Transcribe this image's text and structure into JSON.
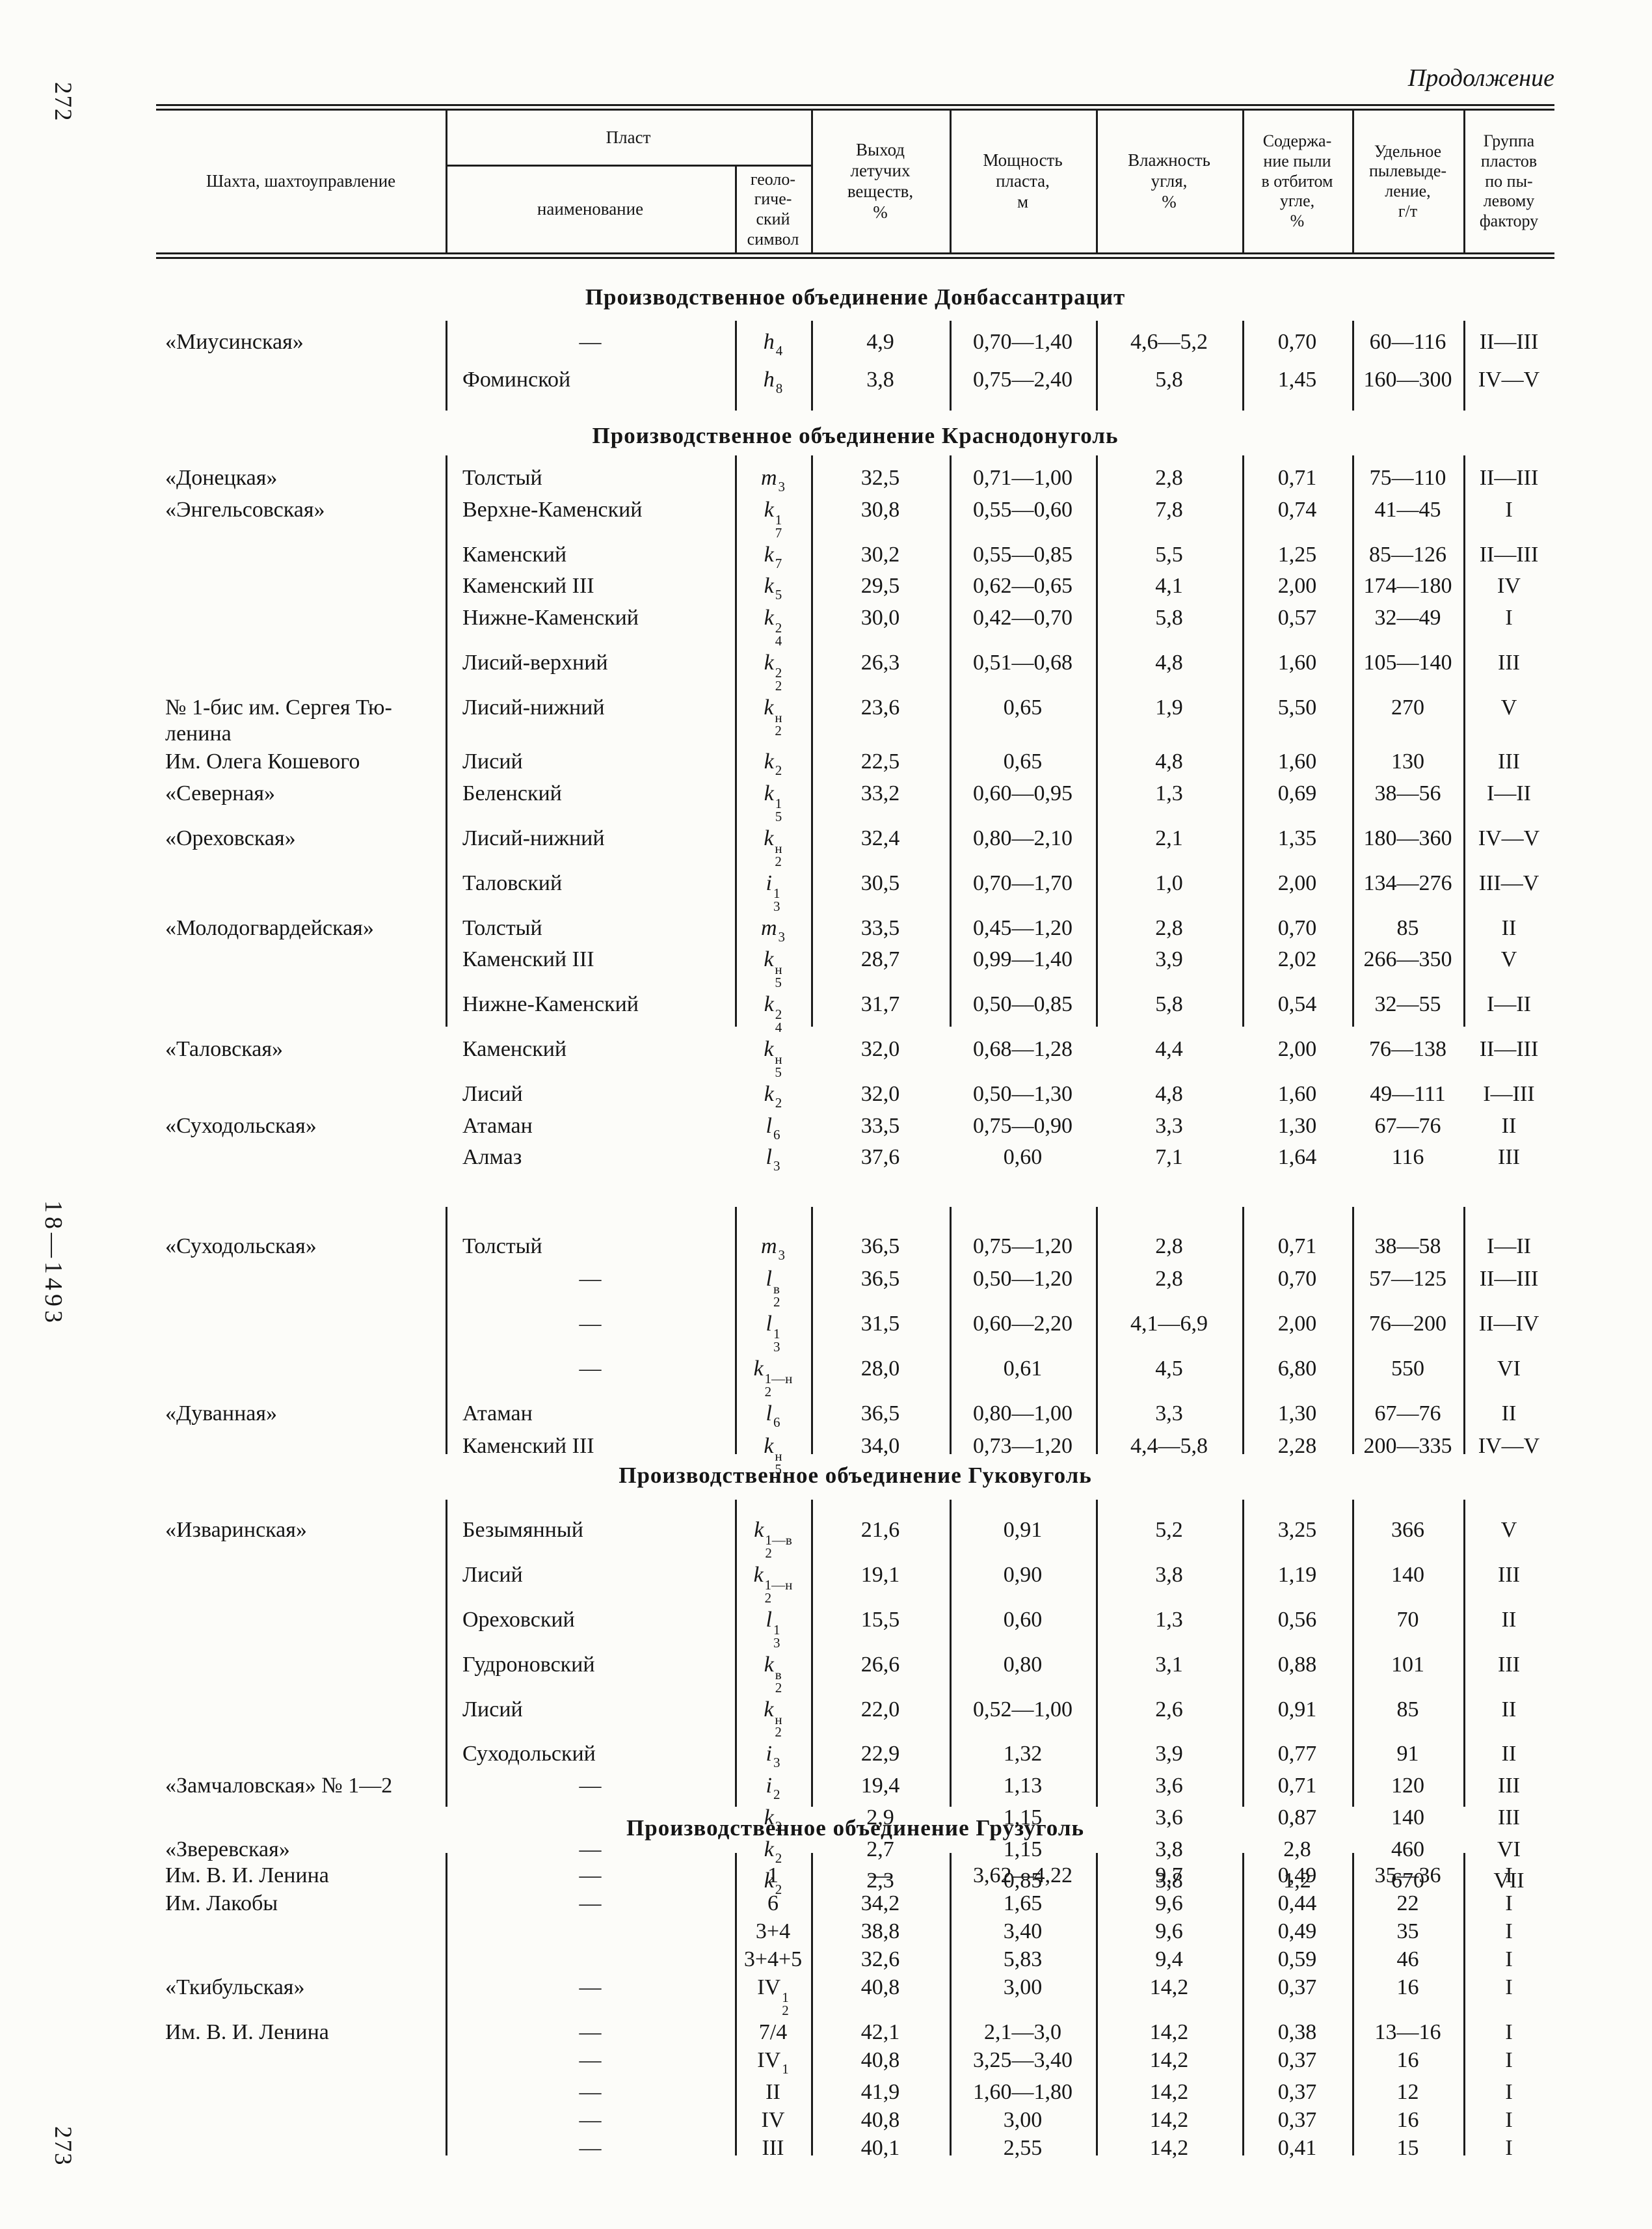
{
  "page": {
    "top_left_number": "272",
    "bottom_left_number": "273",
    "side_note": "18—1493",
    "continuation_label": "Продолжение"
  },
  "table_header": {
    "mine": "Шахта, шахтоуправление",
    "seam_group": "Пласт",
    "seam_name": "наименование",
    "seam_symbol": "геоло-\nгиче-\nский\nсимвол",
    "volatile": "Выход\nлетучих\nвеществ,\n%",
    "thickness": "Мощность\nпласта,\nм",
    "moisture": "Влажность\nугля,\n%",
    "dust": "Содержа-\nние пыли\nв отбитом\nугле,\n%",
    "emission": "Удельное\nпылевыде-\nление,\nг/т",
    "group": "Группа\nпластов\nпо пы-\nлевому\nфактору"
  },
  "sections": [
    {
      "title": "Производственное объединение Донбассантрацит",
      "rows": [
        {
          "mn": "«Миусинская»",
          "sm": "—",
          "sy": {
            "b": "h",
            "sb": "4"
          },
          "va": "4,9",
          "th": "0,70—1,40",
          "mo": "4,6—5,2",
          "du": "0,70",
          "em": "60—116",
          "gr": "II—III"
        },
        {
          "sm": "Фоминской",
          "sy": {
            "b": "h",
            "sb": "8"
          },
          "va": "3,8",
          "th": "0,75—2,40",
          "mo": "5,8",
          "du": "1,45",
          "em": "160—300",
          "gr": "IV—V"
        }
      ]
    },
    {
      "title": "Производственное объединение Краснодонуголь",
      "rows": [
        {
          "mn": "«Донецкая»",
          "sm": "Толстый",
          "sy": {
            "b": "m",
            "sb": "3"
          },
          "va": "32,5",
          "th": "0,71—1,00",
          "mo": "2,8",
          "du": "0,71",
          "em": "75—110",
          "gr": "II—III"
        },
        {
          "mn": "«Энгельсовская»",
          "sm": "Верхне-Каменский",
          "sy": {
            "b": "k",
            "sp": "1",
            "sb": "7"
          },
          "va": "30,8",
          "th": "0,55—0,60",
          "mo": "7,8",
          "du": "0,74",
          "em": "41—45",
          "gr": "I"
        },
        {
          "sm": "Каменский",
          "sy": {
            "b": "k",
            "sb": "7"
          },
          "va": "30,2",
          "th": "0,55—0,85",
          "mo": "5,5",
          "du": "1,25",
          "em": "85—126",
          "gr": "II—III"
        },
        {
          "sm": "Каменский III",
          "sy": {
            "b": "k",
            "sb": "5"
          },
          "va": "29,5",
          "th": "0,62—0,65",
          "mo": "4,1",
          "du": "2,00",
          "em": "174—180",
          "gr": "IV"
        },
        {
          "sm": "Нижне-Каменский",
          "sy": {
            "b": "k",
            "sp": "2",
            "sb": "4"
          },
          "va": "30,0",
          "th": "0,42—0,70",
          "mo": "5,8",
          "du": "0,57",
          "em": "32—49",
          "gr": "I"
        },
        {
          "sm": "Лисий-верхний",
          "sy": {
            "b": "k",
            "sp": "2",
            "sb": "2"
          },
          "va": "26,3",
          "th": "0,51—0,68",
          "mo": "4,8",
          "du": "1,60",
          "em": "105—140",
          "gr": "III"
        },
        {
          "mn": "№ 1-бис им. Сергея Тю-",
          "mn2": "ленина",
          "sm": "Лисий-нижний",
          "sy": {
            "b": "k",
            "sp": "н",
            "sb": "2"
          },
          "va": "23,6",
          "th": "0,65",
          "mo": "1,9",
          "du": "5,50",
          "em": "270",
          "gr": "V"
        },
        {
          "mn": "Им. Олега Кошевого",
          "sm": "Лисий",
          "sy": {
            "b": "k",
            "sb": "2"
          },
          "va": "22,5",
          "th": "0,65",
          "mo": "4,8",
          "du": "1,60",
          "em": "130",
          "gr": "III"
        },
        {
          "mn": "«Северная»",
          "sm": "Беленский",
          "sy": {
            "b": "k",
            "sp": "1",
            "sb": "5"
          },
          "va": "33,2",
          "th": "0,60—0,95",
          "mo": "1,3",
          "du": "0,69",
          "em": "38—56",
          "gr": "I—II"
        },
        {
          "mn": "«Ореховская»",
          "sm": "Лисий-нижний",
          "sy": {
            "b": "k",
            "sp": "н",
            "sb": "2"
          },
          "va": "32,4",
          "th": "0,80—2,10",
          "mo": "2,1",
          "du": "1,35",
          "em": "180—360",
          "gr": "IV—V"
        },
        {
          "sm": "Таловский",
          "sy": {
            "b": "i",
            "sp": "1",
            "sb": "3"
          },
          "va": "30,5",
          "th": "0,70—1,70",
          "mo": "1,0",
          "du": "2,00",
          "em": "134—276",
          "gr": "III—V"
        },
        {
          "mn": "«Молодогвардейская»",
          "sm": "Толстый",
          "sy": {
            "b": "m",
            "sb": "3"
          },
          "va": "33,5",
          "th": "0,45—1,20",
          "mo": "2,8",
          "du": "0,70",
          "em": "85",
          "gr": "II"
        },
        {
          "sm": "Каменский III",
          "sy": {
            "b": "k",
            "sp": "н",
            "sb": "5"
          },
          "va": "28,7",
          "th": "0,99—1,40",
          "mo": "3,9",
          "du": "2,02",
          "em": "266—350",
          "gr": "V"
        },
        {
          "sm": "Нижне-Каменский",
          "sy": {
            "b": "k",
            "sp": "2",
            "sb": "4"
          },
          "va": "31,7",
          "th": "0,50—0,85",
          "mo": "5,8",
          "du": "0,54",
          "em": "32—55",
          "gr": "I—II"
        },
        {
          "mn": "«Таловская»",
          "sm": "Каменский",
          "sy": {
            "b": "k",
            "sp": "н",
            "sb": "5"
          },
          "va": "32,0",
          "th": "0,68—1,28",
          "mo": "4,4",
          "du": "2,00",
          "em": "76—138",
          "gr": "II—III"
        },
        {
          "sm": "Лисий",
          "sy": {
            "b": "k",
            "sb": "2"
          },
          "va": "32,0",
          "th": "0,50—1,30",
          "mo": "4,8",
          "du": "1,60",
          "em": "49—111",
          "gr": "I—III"
        },
        {
          "mn": "«Суходольская»",
          "sm": "Атаман",
          "sy": {
            "b": "l",
            "sb": "6"
          },
          "va": "33,5",
          "th": "0,75—0,90",
          "mo": "3,3",
          "du": "1,30",
          "em": "67—76",
          "gr": "II"
        },
        {
          "sm": "Алмаз",
          "sy": {
            "b": "l",
            "sb": "3"
          },
          "va": "37,6",
          "th": "0,60",
          "mo": "7,1",
          "du": "1,64",
          "em": "116",
          "gr": "III"
        }
      ]
    },
    {
      "title": null,
      "rows": [
        {
          "mn": "«Суходольская»",
          "sm": "Толстый",
          "sy": {
            "b": "m",
            "sb": "3"
          },
          "va": "36,5",
          "th": "0,75—1,20",
          "mo": "2,8",
          "du": "0,71",
          "em": "38—58",
          "gr": "I—II"
        },
        {
          "sm": "—",
          "sy": {
            "b": "l",
            "sp": "в",
            "sb": "2"
          },
          "va": "36,5",
          "th": "0,50—1,20",
          "mo": "2,8",
          "du": "0,70",
          "em": "57—125",
          "gr": "II—III"
        },
        {
          "sm": "—",
          "sy": {
            "b": "l",
            "sp": "1",
            "sb": "3"
          },
          "va": "31,5",
          "th": "0,60—2,20",
          "mo": "4,1—6,9",
          "du": "2,00",
          "em": "76—200",
          "gr": "II—IV"
        },
        {
          "sm": "—",
          "sy": {
            "b": "k",
            "sp": "1—н",
            "sb": "2"
          },
          "va": "28,0",
          "th": "0,61",
          "mo": "4,5",
          "du": "6,80",
          "em": "550",
          "gr": "VI"
        },
        {
          "mn": "«Дуванная»",
          "sm": "Атаман",
          "sy": {
            "b": "l",
            "sb": "6"
          },
          "va": "36,5",
          "th": "0,80—1,00",
          "mo": "3,3",
          "du": "1,30",
          "em": "67—76",
          "gr": "II"
        },
        {
          "sm": "Каменский III",
          "sy": {
            "b": "k",
            "sp": "н",
            "sb": "5"
          },
          "va": "34,0",
          "th": "0,73—1,20",
          "mo": "4,4—5,8",
          "du": "2,28",
          "em": "200—335",
          "gr": "IV—V"
        }
      ]
    },
    {
      "title": "Производственное объединение Гуковуголь",
      "rows": [
        {
          "mn": "«Изваринская»",
          "sm": "Безымянный",
          "sy": {
            "b": "k",
            "sp": "1—в",
            "sb": "2"
          },
          "va": "21,6",
          "th": "0,91",
          "mo": "5,2",
          "du": "3,25",
          "em": "366",
          "gr": "V"
        },
        {
          "sm": "Лисий",
          "sy": {
            "b": "k",
            "sp": "1—н",
            "sb": "2"
          },
          "va": "19,1",
          "th": "0,90",
          "mo": "3,8",
          "du": "1,19",
          "em": "140",
          "gr": "III"
        },
        {
          "sm": "Ореховский",
          "sy": {
            "b": "l",
            "sp": "1",
            "sb": "3"
          },
          "va": "15,5",
          "th": "0,60",
          "mo": "1,3",
          "du": "0,56",
          "em": "70",
          "gr": "II"
        },
        {
          "sm": "Гудроновский",
          "sy": {
            "b": "k",
            "sp": "в",
            "sb": "2"
          },
          "va": "26,6",
          "th": "0,80",
          "mo": "3,1",
          "du": "0,88",
          "em": "101",
          "gr": "III"
        },
        {
          "sm": "Лисий",
          "sy": {
            "b": "k",
            "sp": "н",
            "sb": "2"
          },
          "va": "22,0",
          "th": "0,52—1,00",
          "mo": "2,6",
          "du": "0,91",
          "em": "85",
          "gr": "II"
        },
        {
          "sm": "Суходольский",
          "sy": {
            "b": "i",
            "sb": "3"
          },
          "va": "22,9",
          "th": "1,32",
          "mo": "3,9",
          "du": "0,77",
          "em": "91",
          "gr": "II"
        },
        {
          "mn": "«Замчаловская» № 1—2",
          "sm": "—",
          "sy": {
            "b": "i",
            "sb": "2"
          },
          "va": "19,4",
          "th": "1,13",
          "mo": "3,6",
          "du": "0,71",
          "em": "120",
          "gr": "III"
        },
        {
          "sy": {
            "b": "k",
            "sb": "2"
          },
          "va": "2,9",
          "th": "1,15",
          "mo": "3,6",
          "du": "0,87",
          "em": "140",
          "gr": "III"
        },
        {
          "mn": "«Зверевская»",
          "sm": "—",
          "sy": {
            "b": "k",
            "sb": "2"
          },
          "va": "2,7",
          "th": "1,15",
          "mo": "3,8",
          "du": "2,8",
          "em": "460",
          "gr": "VI"
        },
        {
          "sy": {
            "b": "k",
            "sb": "2"
          },
          "va": "2,3",
          "th": "0,85",
          "mo": "3,8",
          "du": "1,2",
          "em": "670",
          "gr": "VII"
        }
      ]
    },
    {
      "title": "Производственное объединение Грузуголь",
      "rows": [
        {
          "mn": "Им. В. И. Ленина",
          "sm": "—",
          "sy": {
            "b": "1",
            "up": true
          },
          "va": "—",
          "th": "3,62—4,22",
          "mo": "9,7",
          "du": "0,49",
          "em": "35—36",
          "gr": "I"
        },
        {
          "mn": "Им. Лакобы",
          "sm": "—",
          "sy": {
            "b": "6",
            "up": true
          },
          "va": "34,2",
          "th": "1,65",
          "mo": "9,6",
          "du": "0,44",
          "em": "22",
          "gr": "I"
        },
        {
          "sy": {
            "b": "3+4",
            "up": true
          },
          "va": "38,8",
          "th": "3,40",
          "mo": "9,6",
          "du": "0,49",
          "em": "35",
          "gr": "I"
        },
        {
          "sy": {
            "b": "3+4+5",
            "up": true
          },
          "va": "32,6",
          "th": "5,83",
          "mo": "9,4",
          "du": "0,59",
          "em": "46",
          "gr": "I"
        },
        {
          "mn": "«Ткибульская»",
          "sm": "—",
          "sy": {
            "b": "IV",
            "sp": "1",
            "sb": "2",
            "up": true
          },
          "va": "40,8",
          "th": "3,00",
          "mo": "14,2",
          "du": "0,37",
          "em": "16",
          "gr": "I"
        },
        {
          "mn": "Им. В. И. Ленина",
          "sm": "—",
          "sy": {
            "b": "7/4",
            "up": true
          },
          "va": "42,1",
          "th": "2,1—3,0",
          "mo": "14,2",
          "du": "0,38",
          "em": "13—16",
          "gr": "I"
        },
        {
          "sm": "—",
          "sy": {
            "b": "IV",
            "sb": "1",
            "up": true
          },
          "va": "40,8",
          "th": "3,25—3,40",
          "mo": "14,2",
          "du": "0,37",
          "em": "16",
          "gr": "I"
        },
        {
          "sm": "—",
          "sy": {
            "b": "II",
            "up": true
          },
          "va": "41,9",
          "th": "1,60—1,80",
          "mo": "14,2",
          "du": "0,37",
          "em": "12",
          "gr": "I"
        },
        {
          "sm": "—",
          "sy": {
            "b": "IV",
            "up": true
          },
          "va": "40,8",
          "th": "3,00",
          "mo": "14,2",
          "du": "0,37",
          "em": "16",
          "gr": "I"
        },
        {
          "sm": "—",
          "sy": {
            "b": "III",
            "up": true
          },
          "va": "40,1",
          "th": "2,55",
          "mo": "14,2",
          "du": "0,41",
          "em": "15",
          "gr": "I"
        }
      ]
    }
  ]
}
